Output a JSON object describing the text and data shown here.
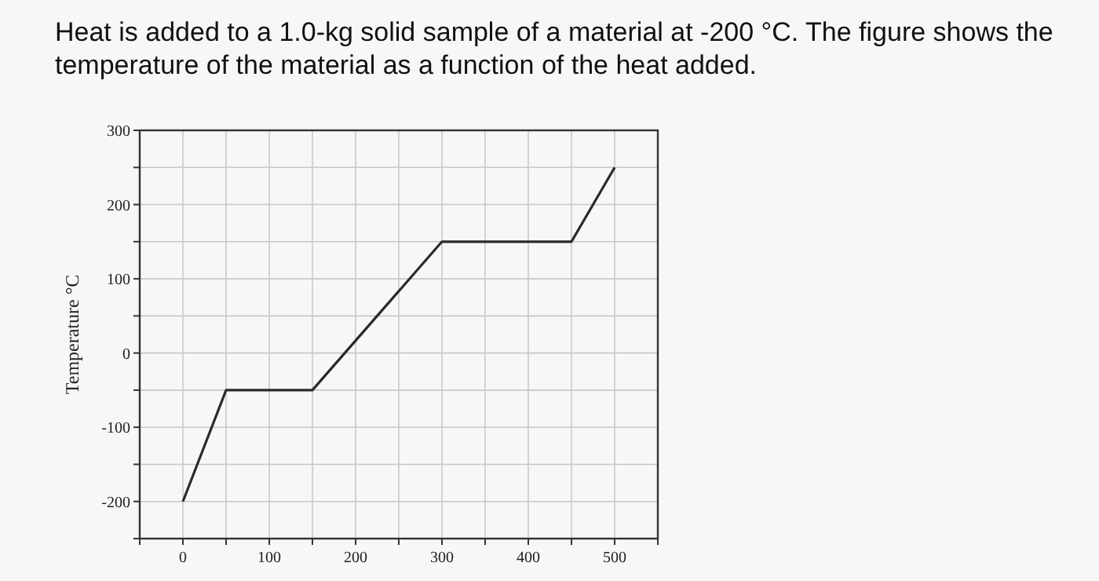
{
  "chart_data": {
    "type": "line",
    "title": "Heat is added to a 1.0-kg solid sample of a material at -200 °C. The figure shows the temperature of the material as a function of the heat added.",
    "ylabel": "Temperature °C",
    "x": [
      0,
      50,
      150,
      300,
      450,
      500
    ],
    "series": [
      {
        "color": "#2a2a2a",
        "values": [
          -200,
          -50,
          -50,
          150,
          150,
          250
        ]
      }
    ],
    "xlim": [
      -50,
      550
    ],
    "xticks": [
      {
        "value": -50,
        "label": null
      },
      0,
      {
        "value": 50,
        "label": null
      },
      100,
      {
        "value": 150,
        "label": null
      },
      200,
      {
        "value": 250,
        "label": null
      },
      300,
      {
        "value": 350,
        "label": null
      },
      400,
      {
        "value": 450,
        "label": null
      },
      500,
      {
        "value": 550,
        "label": null
      }
    ],
    "ylim": [
      -250,
      300
    ],
    "yticks": [
      {
        "value": -250,
        "label": null
      },
      -200,
      {
        "value": -150,
        "label": null
      },
      -100,
      {
        "value": -50,
        "label": null
      },
      0,
      {
        "value": 50,
        "label": null
      },
      100,
      {
        "value": 150,
        "label": null
      },
      200,
      {
        "value": 250,
        "label": null
      },
      300
    ],
    "grid": true,
    "marker": "none",
    "line_style": "solid"
  }
}
